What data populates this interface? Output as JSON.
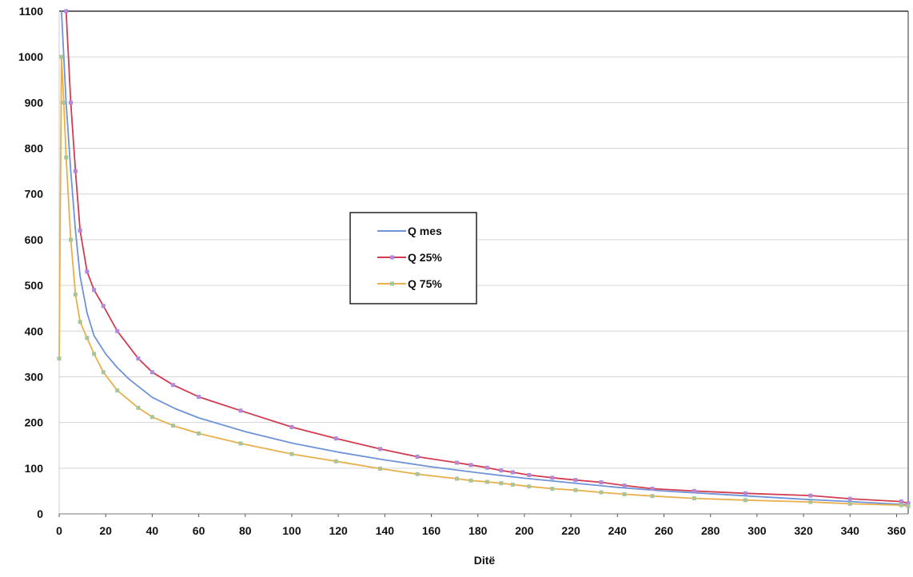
{
  "chart_data": {
    "type": "line",
    "title": "",
    "xlabel": "Ditë",
    "ylabel": "",
    "xlim": [
      0,
      365
    ],
    "ylim": [
      0,
      1100
    ],
    "xticks": [
      0,
      20,
      40,
      60,
      80,
      100,
      120,
      140,
      160,
      180,
      200,
      220,
      240,
      260,
      280,
      300,
      320,
      340,
      360
    ],
    "yticks": [
      0,
      100,
      200,
      300,
      400,
      500,
      600,
      700,
      800,
      900,
      1000,
      1100
    ],
    "grid": true,
    "legend": {
      "placement": "center-left"
    },
    "series": [
      {
        "name": "Q mes",
        "color": "#6f93d8",
        "markers": false,
        "x": [
          1,
          2,
          3,
          5,
          7,
          9,
          12,
          15,
          20,
          25,
          30,
          40,
          50,
          60,
          80,
          100,
          120,
          140,
          160,
          180,
          200,
          220,
          240,
          260,
          280,
          300,
          320,
          340,
          365
        ],
        "y": [
          1100,
          1000,
          900,
          750,
          620,
          520,
          440,
          390,
          350,
          320,
          295,
          255,
          230,
          210,
          180,
          155,
          135,
          118,
          103,
          90,
          78,
          68,
          58,
          50,
          44,
          38,
          32,
          27,
          20
        ]
      },
      {
        "name": "Q 25%",
        "color": "#d23c50",
        "marker_color": "#b08ad8",
        "markers": true,
        "x": [
          3,
          5,
          7,
          9,
          12,
          15,
          19,
          25,
          34,
          40,
          49,
          60,
          78,
          100,
          119,
          138,
          154,
          171,
          177,
          184,
          190,
          195,
          202,
          212,
          222,
          233,
          243,
          255,
          273,
          295,
          323,
          340,
          362,
          365
        ],
        "y": [
          1100,
          900,
          750,
          620,
          530,
          490,
          455,
          400,
          340,
          310,
          282,
          256,
          226,
          190,
          165,
          142,
          125,
          112,
          107,
          101,
          95,
          91,
          85,
          79,
          74,
          69,
          62,
          55,
          50,
          45,
          40,
          33,
          27,
          23
        ]
      },
      {
        "name": "Q 75%",
        "color": "#e8b04a",
        "marker_color": "#a8c49a",
        "markers": true,
        "x": [
          0,
          1,
          2,
          3,
          5,
          7,
          9,
          12,
          15,
          19,
          25,
          34,
          40,
          49,
          60,
          78,
          100,
          119,
          138,
          154,
          171,
          177,
          184,
          190,
          195,
          202,
          212,
          222,
          233,
          243,
          255,
          273,
          295,
          323,
          340,
          362,
          365
        ],
        "y": [
          340,
          1000,
          900,
          780,
          600,
          480,
          420,
          385,
          350,
          310,
          270,
          232,
          212,
          193,
          176,
          154,
          131,
          115,
          99,
          87,
          77,
          73,
          70,
          67,
          64,
          60,
          55,
          52,
          47,
          43,
          39,
          34,
          30,
          26,
          22,
          19,
          17
        ]
      }
    ]
  }
}
